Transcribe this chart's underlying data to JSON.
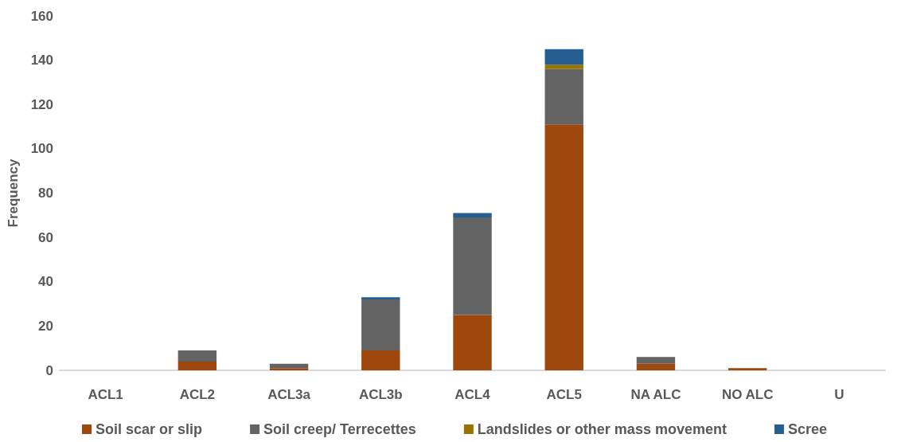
{
  "chart_data": {
    "type": "bar",
    "stacked": true,
    "ylabel": "Frequency",
    "categories": [
      "ACL1",
      "ACL2",
      "ACL3a",
      "ACL3b",
      "ACL4",
      "ACL5",
      "NA ALC",
      "NO ALC",
      "U"
    ],
    "series": [
      {
        "name": "Soil scar or slip",
        "color": "#9e480e",
        "values": [
          0,
          4,
          1,
          9,
          25,
          111,
          3,
          1,
          0
        ]
      },
      {
        "name": "Soil creep/ Terrecettes",
        "color": "#636363",
        "values": [
          0,
          5,
          2,
          23,
          44,
          25,
          3,
          0,
          0
        ]
      },
      {
        "name": "Landslides or other mass movement",
        "color": "#997300",
        "values": [
          0,
          0,
          0,
          0,
          0,
          2,
          0,
          0,
          0
        ]
      },
      {
        "name": "Scree",
        "color": "#255e91",
        "values": [
          0,
          0,
          0,
          1,
          2,
          7,
          0,
          0,
          0
        ]
      }
    ],
    "ylim": [
      0,
      160
    ],
    "yticks": [
      0,
      20,
      40,
      60,
      80,
      100,
      120,
      140,
      160
    ],
    "grid": false,
    "legend": "bottom"
  }
}
